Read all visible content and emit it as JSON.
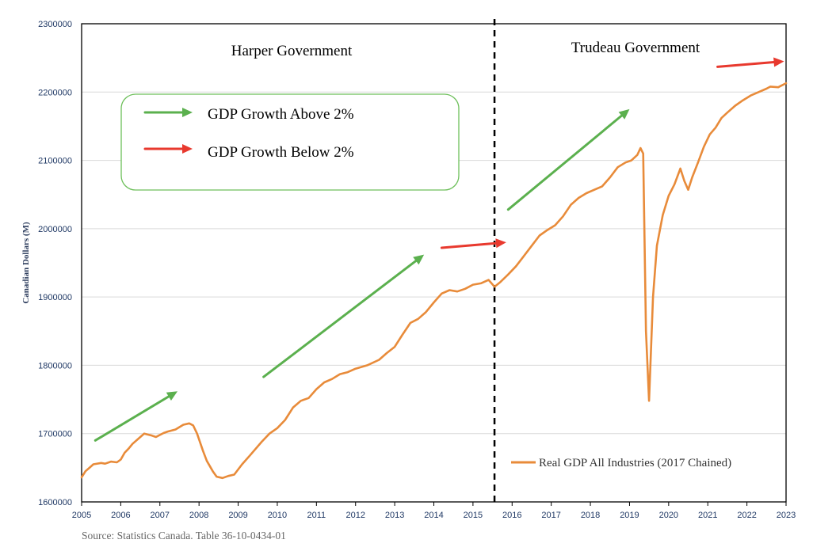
{
  "chart_data": {
    "type": "line",
    "ylabel": "Canadian Dollars (M)",
    "xlim": [
      2005,
      2023
    ],
    "ylim": [
      1600000,
      2300000
    ],
    "y_ticks": [
      1600000,
      1700000,
      1800000,
      1900000,
      2000000,
      2100000,
      2200000,
      2300000
    ],
    "y_tick_labels": [
      "1600000",
      "1700000",
      "1800000",
      "1900000",
      "2000000",
      "2100000",
      "2200000",
      "2300000"
    ],
    "x_ticks": [
      2005,
      2006,
      2007,
      2008,
      2009,
      2010,
      2011,
      2012,
      2013,
      2014,
      2015,
      2016,
      2017,
      2018,
      2019,
      2020,
      2021,
      2022,
      2023
    ],
    "x_tick_labels": [
      "2005",
      "2006",
      "2007",
      "2008",
      "2009",
      "2010",
      "2011",
      "2012",
      "2013",
      "2014",
      "2015",
      "2016",
      "2017",
      "2018",
      "2019",
      "2020",
      "2021",
      "2022",
      "2023"
    ],
    "grid": "horizontal",
    "legend_placement": "bottom-right",
    "series": [
      {
        "name": "Real GDP All Industries (2017 Chained)",
        "color": "#E88B3A",
        "x": [
          2005.0,
          2005.1,
          2005.2,
          2005.3,
          2005.5,
          2005.6,
          2005.75,
          2005.9,
          2006.0,
          2006.1,
          2006.2,
          2006.3,
          2006.5,
          2006.6,
          2006.8,
          2006.9,
          2007.0,
          2007.1,
          2007.2,
          2007.4,
          2007.6,
          2007.75,
          2007.85,
          2007.95,
          2008.1,
          2008.2,
          2008.35,
          2008.45,
          2008.6,
          2008.75,
          2008.9,
          2009.1,
          2009.3,
          2009.6,
          2009.8,
          2010.0,
          2010.2,
          2010.4,
          2010.6,
          2010.8,
          2011.0,
          2011.2,
          2011.4,
          2011.6,
          2011.8,
          2012.0,
          2012.3,
          2012.6,
          2012.8,
          2013.0,
          2013.2,
          2013.4,
          2013.6,
          2013.8,
          2014.0,
          2014.2,
          2014.4,
          2014.6,
          2014.8,
          2015.0,
          2015.2,
          2015.4,
          2015.55,
          2015.7,
          2015.9,
          2016.1,
          2016.3,
          2016.5,
          2016.7,
          2016.9,
          2017.1,
          2017.3,
          2017.5,
          2017.7,
          2017.9,
          2018.1,
          2018.3,
          2018.5,
          2018.7,
          2018.9,
          2019.05,
          2019.2,
          2019.28,
          2019.35,
          2019.42,
          2019.5,
          2019.6,
          2019.7,
          2019.85,
          2020.0,
          2020.15,
          2020.3,
          2020.4,
          2020.5,
          2020.6,
          2020.75,
          2020.9,
          2021.05,
          2021.2,
          2021.35,
          2021.5,
          2021.7,
          2021.9,
          2022.1,
          2022.3,
          2022.5,
          2022.6,
          2022.8,
          2023.0
        ],
        "y": [
          1636000,
          1645000,
          1650000,
          1655000,
          1657000,
          1656000,
          1659000,
          1658000,
          1662000,
          1672000,
          1678000,
          1685000,
          1695000,
          1700000,
          1697000,
          1695000,
          1698000,
          1701000,
          1703000,
          1706000,
          1713000,
          1715000,
          1712000,
          1700000,
          1675000,
          1660000,
          1645000,
          1637000,
          1635000,
          1638000,
          1640000,
          1655000,
          1668000,
          1688000,
          1700000,
          1708000,
          1720000,
          1738000,
          1748000,
          1752000,
          1765000,
          1775000,
          1780000,
          1787000,
          1790000,
          1795000,
          1800000,
          1808000,
          1818000,
          1827000,
          1845000,
          1862000,
          1868000,
          1878000,
          1892000,
          1905000,
          1910000,
          1908000,
          1912000,
          1918000,
          1920000,
          1925000,
          1915000,
          1922000,
          1933000,
          1945000,
          1960000,
          1975000,
          1990000,
          1998000,
          2005000,
          2018000,
          2035000,
          2045000,
          2052000,
          2057000,
          2062000,
          2075000,
          2090000,
          2097000,
          2100000,
          2108000,
          2118000,
          2110000,
          1850000,
          1748000,
          1900000,
          1975000,
          2020000,
          2048000,
          2065000,
          2088000,
          2070000,
          2057000,
          2075000,
          2097000,
          2120000,
          2138000,
          2148000,
          2162000,
          2170000,
          2180000,
          2188000,
          2195000,
          2200000,
          2205000,
          2208000,
          2207000,
          2213000
        ]
      }
    ]
  },
  "annotations": {
    "harper_label": "Harper Government",
    "trudeau_label": "Trudeau Government",
    "above_label": "GDP Growth Above 2%",
    "below_label": "GDP Growth Below 2%",
    "divider_year": 2015.55,
    "above_color": "#5BB04E",
    "below_color": "#E8392E",
    "legend_box_border": "#6DBF5A"
  },
  "arrows": [
    {
      "kind": "above",
      "from": [
        2005.35,
        1690000
      ],
      "to": [
        2007.45,
        1762000
      ]
    },
    {
      "kind": "above",
      "from": [
        2009.65,
        1783000
      ],
      "to": [
        2013.75,
        1962000
      ]
    },
    {
      "kind": "below",
      "from": [
        2014.2,
        1972000
      ],
      "to": [
        2015.85,
        1980000
      ]
    },
    {
      "kind": "above",
      "from": [
        2015.9,
        2028000
      ],
      "to": [
        2019.0,
        2175000
      ]
    },
    {
      "kind": "below",
      "from": [
        2021.25,
        2237000
      ],
      "to": [
        2022.95,
        2245000
      ]
    }
  ],
  "source": "Source:  Statistics Canada. Table 36-10-0434-01"
}
